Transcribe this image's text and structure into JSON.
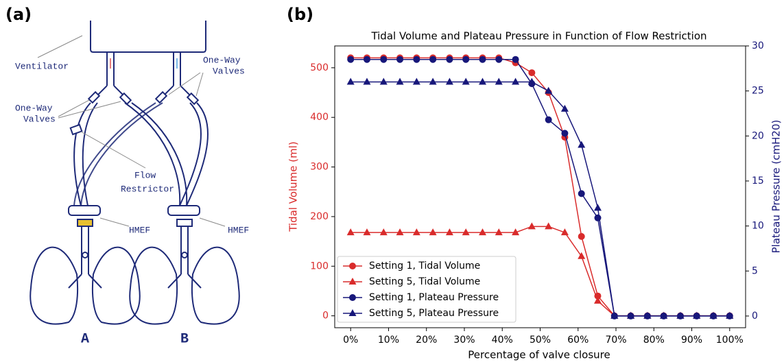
{
  "panels": {
    "a": "(a)",
    "b": "(b)"
  },
  "diagram": {
    "ventilator": "Ventilator",
    "valves_top": [
      "One-Way",
      "Valves"
    ],
    "valves_left": [
      "One-Way",
      "Valves"
    ],
    "restrictor": [
      "Flow",
      "Restrictor"
    ],
    "hmef_a": "HMEF",
    "hmef_b": "HMEF",
    "patient_a": "A",
    "patient_b": "B"
  },
  "chart_data": {
    "type": "line",
    "title": "Tidal Volume and Plateau Pressure in Function of Flow Restriction",
    "xlabel": "Percentage of valve closure",
    "ylabel": "Tidal Volume (ml)",
    "y2label": "Plateau Pressure (cmH20)",
    "x": [
      0,
      4.3,
      8.7,
      13,
      17.4,
      21.7,
      26.1,
      30.4,
      34.8,
      39.1,
      43.5,
      47.8,
      52.2,
      56.5,
      60.9,
      65.2,
      69.6,
      73.9,
      78.3,
      82.6,
      87,
      91.3,
      95.7,
      100
    ],
    "xlim": [
      -4.2,
      104.2
    ],
    "xticks": [
      {
        "value": 0,
        "label": "0%"
      },
      {
        "value": 10,
        "label": "10%"
      },
      {
        "value": 20,
        "label": "20%"
      },
      {
        "value": 30,
        "label": "30%"
      },
      {
        "value": 40,
        "label": "40%"
      },
      {
        "value": 50,
        "label": "50%"
      },
      {
        "value": 60,
        "label": "60%"
      },
      {
        "value": 70,
        "label": "70%"
      },
      {
        "value": 80,
        "label": "80%"
      },
      {
        "value": 90,
        "label": "90%"
      },
      {
        "value": 100,
        "label": "100%"
      }
    ],
    "ylim": [
      -24,
      544
    ],
    "yticks": [
      0,
      100,
      200,
      300,
      400,
      500
    ],
    "ycolor": "#d92b2b",
    "y2lim": [
      -1.3,
      30
    ],
    "y2ticks": [
      0,
      5,
      10,
      15,
      20,
      25,
      30
    ],
    "y2color": "#17177a",
    "legend": "lower left",
    "series": [
      {
        "name": "Setting 1, Tidal Volume",
        "color": "#d92b2b",
        "marker": "circle",
        "values": [
          520,
          520,
          520,
          520,
          520,
          520,
          520,
          520,
          520,
          520,
          510,
          490,
          450,
          360,
          160,
          40,
          0,
          0,
          0,
          0,
          0,
          0,
          0,
          0
        ]
      },
      {
        "name": "Setting 5, Tidal Volume",
        "color": "#d92b2b",
        "marker": "triangle",
        "values": [
          168,
          168,
          168,
          168,
          168,
          168,
          168,
          168,
          168,
          168,
          168,
          180,
          180,
          168,
          120,
          30,
          0,
          0,
          0,
          0,
          0,
          0,
          0,
          0
        ]
      },
      {
        "name": "Setting 1, Plateau Pressure",
        "color": "#17177a",
        "marker": "circle",
        "axis": "y2",
        "values": [
          28.5,
          28.5,
          28.5,
          28.5,
          28.5,
          28.5,
          28.5,
          28.5,
          28.5,
          28.5,
          28.5,
          25.8,
          21.8,
          20.3,
          13.6,
          10.9,
          0,
          0,
          0,
          0,
          0,
          0,
          0,
          0
        ]
      },
      {
        "name": "Setting 5, Plateau Pressure",
        "color": "#17177a",
        "marker": "triangle",
        "axis": "y2",
        "values": [
          26,
          26,
          26,
          26,
          26,
          26,
          26,
          26,
          26,
          26,
          26,
          26,
          25,
          23,
          19,
          12,
          0,
          0,
          0,
          0,
          0,
          0,
          0,
          0
        ]
      }
    ]
  }
}
